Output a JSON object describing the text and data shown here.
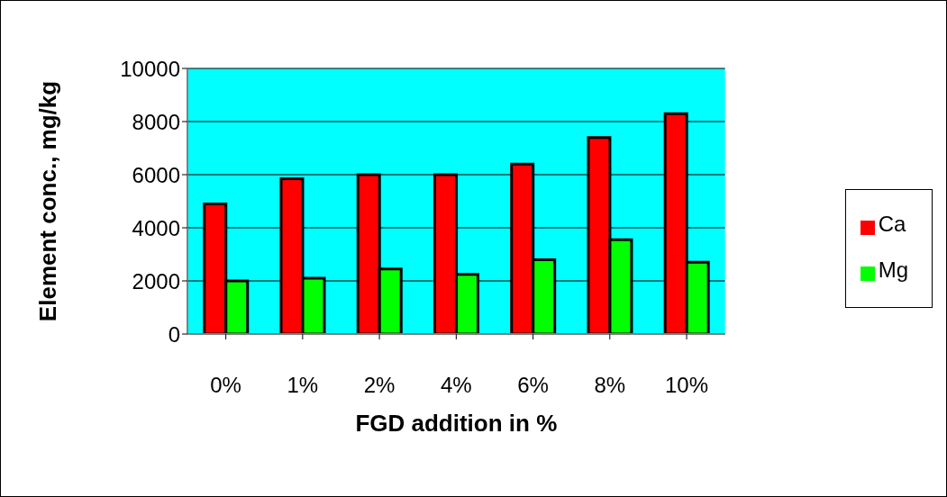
{
  "chart_data": {
    "type": "bar",
    "xlabel": "FGD addition in %",
    "ylabel": "Element conc., mg/kg",
    "categories": [
      "0%",
      "1%",
      "2%",
      "4%",
      "6%",
      "8%",
      "10%"
    ],
    "series": [
      {
        "name": "Ca",
        "color": "#ff0000",
        "values": [
          4900,
          5850,
          6000,
          6000,
          6400,
          7400,
          8300
        ]
      },
      {
        "name": "Mg",
        "color": "#00ff00",
        "values": [
          2000,
          2100,
          2450,
          2250,
          2800,
          3550,
          2700
        ]
      }
    ],
    "ylim": [
      0,
      10000
    ],
    "yticks": [
      0,
      2000,
      4000,
      6000,
      8000,
      10000
    ],
    "grid": "y",
    "legend": "right"
  }
}
